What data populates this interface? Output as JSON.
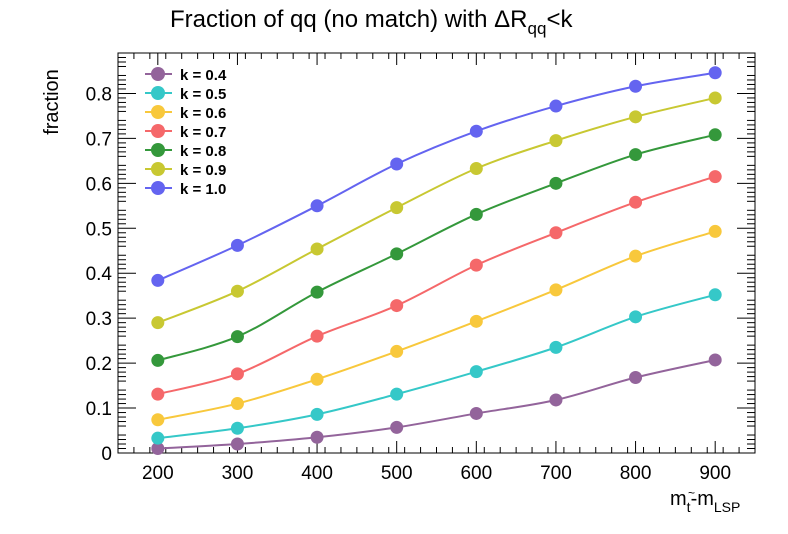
{
  "chart_data": {
    "type": "line",
    "title": {
      "prefix": "Fraction of qq (no match) with ",
      "symbol": "ΔR",
      "subscript": "qq",
      "suffix": "<k"
    },
    "xlabel": {
      "main": "m",
      "sub1": "t",
      "tilde": "~",
      "dash": "-m",
      "sub2": "LSP"
    },
    "ylabel": "fraction",
    "x": [
      200,
      300,
      400,
      500,
      600,
      700,
      800,
      900
    ],
    "xlim": [
      150,
      950
    ],
    "ylim": [
      0,
      0.89
    ],
    "xticks": [
      200,
      300,
      400,
      500,
      600,
      700,
      800,
      900
    ],
    "yticks": [
      0,
      0.1,
      0.2,
      0.3,
      0.4,
      0.5,
      0.6,
      0.7,
      0.8
    ],
    "ytick_labels": [
      "0",
      "0.1",
      "0.2",
      "0.3",
      "0.4",
      "0.5",
      "0.6",
      "0.7",
      "0.8"
    ],
    "grid": false,
    "legend_position": "top-left",
    "series": [
      {
        "name": "k = 0.4",
        "color": "#93649b",
        "values": [
          0.01,
          0.02,
          0.035,
          0.057,
          0.088,
          0.118,
          0.168,
          0.207
        ]
      },
      {
        "name": "k = 0.5",
        "color": "#35c8c8",
        "values": [
          0.033,
          0.055,
          0.086,
          0.131,
          0.181,
          0.235,
          0.303,
          0.352
        ]
      },
      {
        "name": "k = 0.6",
        "color": "#f8c83c",
        "values": [
          0.074,
          0.11,
          0.164,
          0.226,
          0.293,
          0.363,
          0.438,
          0.493
        ]
      },
      {
        "name": "k = 0.7",
        "color": "#f5686a",
        "values": [
          0.131,
          0.176,
          0.26,
          0.328,
          0.418,
          0.49,
          0.558,
          0.615
        ]
      },
      {
        "name": "k = 0.8",
        "color": "#34983b",
        "values": [
          0.206,
          0.259,
          0.358,
          0.443,
          0.531,
          0.6,
          0.664,
          0.708
        ]
      },
      {
        "name": "k = 0.9",
        "color": "#c8c832",
        "values": [
          0.29,
          0.36,
          0.454,
          0.546,
          0.633,
          0.695,
          0.748,
          0.79
        ]
      },
      {
        "name": "k = 1.0",
        "color": "#6464f0",
        "values": [
          0.384,
          0.462,
          0.55,
          0.643,
          0.716,
          0.772,
          0.816,
          0.846
        ]
      }
    ]
  }
}
